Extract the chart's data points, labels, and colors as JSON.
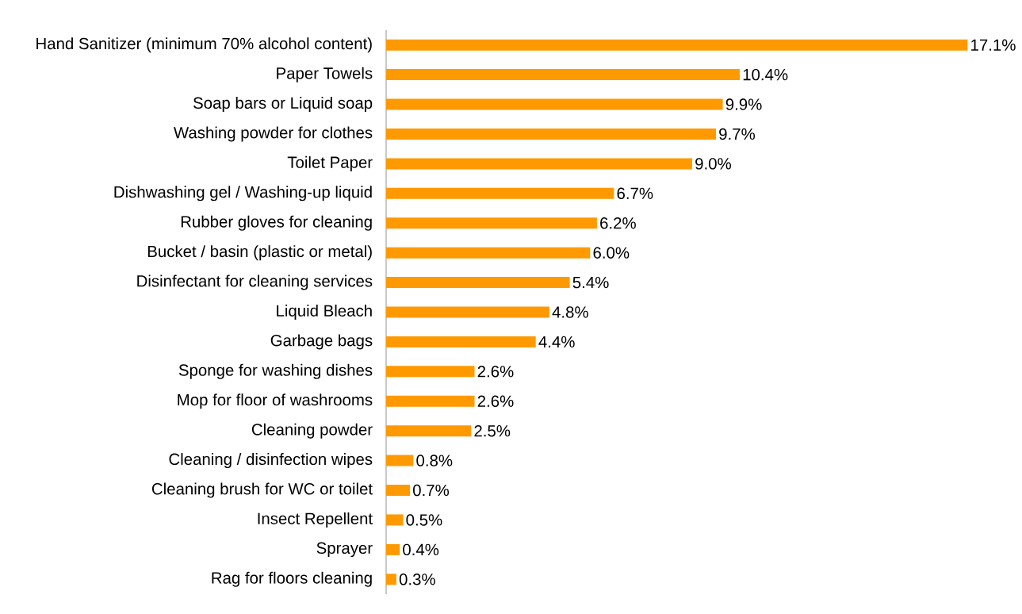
{
  "chart_data": {
    "type": "bar",
    "orientation": "horizontal",
    "color": "#ff9900",
    "categories": [
      "Hand Sanitizer (minimum 70% alcohol content)",
      "Paper Towels",
      "Soap bars or Liquid soap",
      "Washing powder for clothes",
      "Toilet Paper",
      "Dishwashing gel / Washing-up liquid",
      "Rubber gloves for cleaning",
      "Bucket / basin (plastic or metal)",
      "Disinfectant for cleaning services",
      "Liquid Bleach",
      "Garbage bags",
      "Sponge for washing dishes",
      "Mop for floor of washrooms",
      "Cleaning powder",
      "Cleaning / disinfection wipes",
      "Cleaning brush for WC or toilet",
      "Insect Repellent",
      "Sprayer",
      "Rag for floors cleaning"
    ],
    "values": [
      17.1,
      10.4,
      9.9,
      9.7,
      9.0,
      6.7,
      6.2,
      6.0,
      5.4,
      4.8,
      4.4,
      2.6,
      2.6,
      2.5,
      0.8,
      0.7,
      0.5,
      0.4,
      0.3
    ],
    "value_labels": [
      "17.1%",
      "10.4%",
      "9.9%",
      "9.7%",
      "9.0%",
      "6.7%",
      "6.2%",
      "6.0%",
      "5.4%",
      "4.8%",
      "4.4%",
      "2.6%",
      "2.6%",
      "2.5%",
      "0.8%",
      "0.7%",
      "0.5%",
      "0.4%",
      "0.3%"
    ]
  }
}
